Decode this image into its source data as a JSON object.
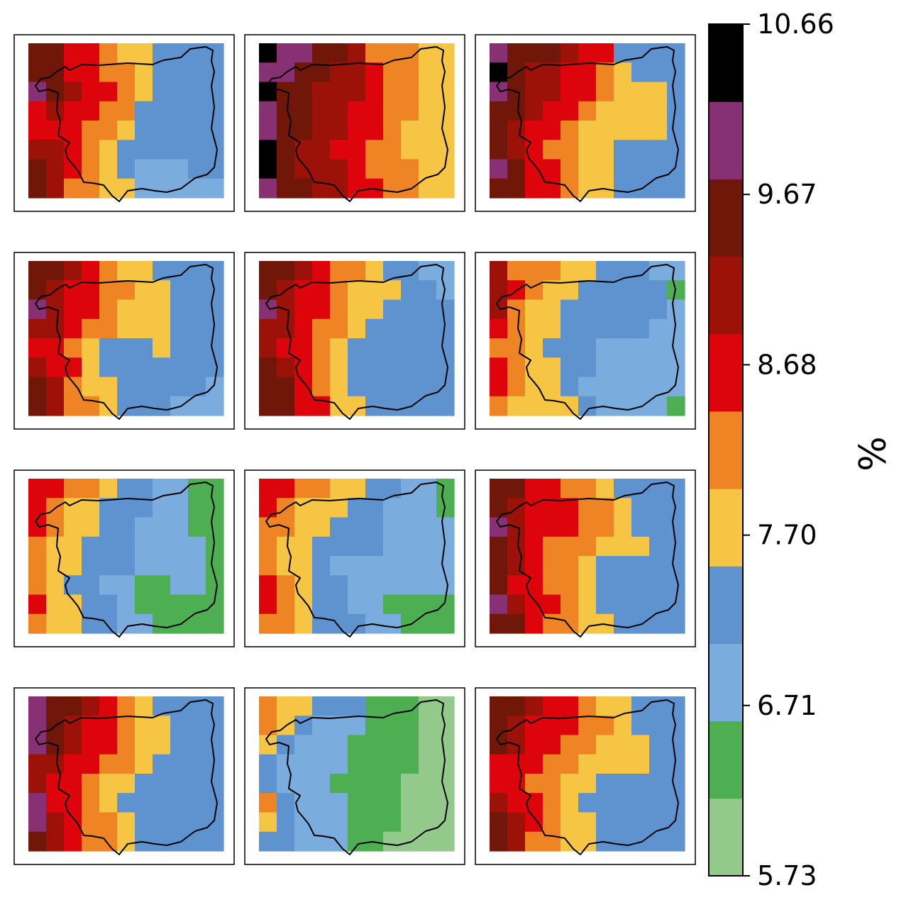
{
  "colorbar": {
    "unit": "%",
    "tick_labels": [
      "10.66",
      "9.67",
      "8.68",
      "7.70",
      "6.71",
      "5.73"
    ],
    "range": [
      5.73,
      10.66
    ],
    "colors_bottom_to_top": [
      "#93c98a",
      "#4daf52",
      "#7aadde",
      "#5f93cf",
      "#f7c544",
      "#ee8424",
      "#dd050b",
      "#9d1208",
      "#70170a",
      "#873074",
      "#000000"
    ]
  },
  "chart_data": {
    "type": "heatmap",
    "layout": "4 rows x 3 columns of map panels",
    "value_unit": "%",
    "panel_count": 12
  }
}
